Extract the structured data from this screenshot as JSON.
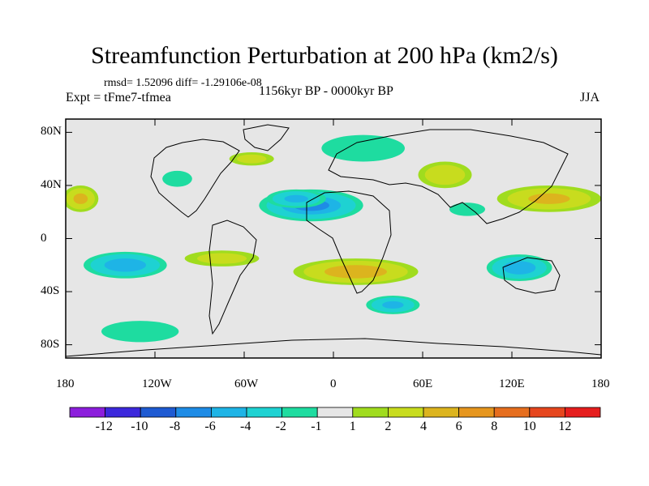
{
  "chart_data": {
    "type": "heatmap",
    "title": "Streamfunction Perturbation at 200 hPa (km2/s)",
    "stats_label": "rmsd= 1.52096 diff= -1.29106e-08",
    "experiment_label": "Expt = tFme7-tfmea",
    "period_label": "1156kyr BP - 0000kyr BP",
    "season_label": "JJA",
    "xlim": [
      -180,
      180
    ],
    "ylim": [
      -90,
      90
    ],
    "x_ticks": [
      {
        "value": -180,
        "label": "180"
      },
      {
        "value": -120,
        "label": "120W"
      },
      {
        "value": -60,
        "label": "60W"
      },
      {
        "value": 0,
        "label": "0"
      },
      {
        "value": 60,
        "label": "60E"
      },
      {
        "value": 120,
        "label": "120E"
      },
      {
        "value": 180,
        "label": "180"
      }
    ],
    "y_ticks": [
      {
        "value": 80,
        "label": "80N"
      },
      {
        "value": 40,
        "label": "40N"
      },
      {
        "value": 0,
        "label": "0"
      },
      {
        "value": -40,
        "label": "40S"
      },
      {
        "value": -80,
        "label": "80S"
      }
    ],
    "colorbar": {
      "colors": [
        "#8c1edc",
        "#3c28dc",
        "#1e5ad2",
        "#1e8ce6",
        "#1eb4e6",
        "#1ed2d2",
        "#1edca0",
        "#e6e6e6",
        "#a0dc1e",
        "#c8dc1e",
        "#dcb41e",
        "#e6961e",
        "#e66e1e",
        "#e6461e",
        "#e61e1e"
      ],
      "labels": [
        "-12",
        "-10",
        "-8",
        "-6",
        "-4",
        "-2",
        "-1",
        "1",
        "2",
        "4",
        "6",
        "8",
        "10",
        "12"
      ]
    },
    "anomalies": [
      {
        "lon": -15,
        "lat": 25,
        "rx": 35,
        "ry": 12,
        "value": -6
      },
      {
        "lon": -25,
        "lat": 30,
        "rx": 20,
        "ry": 7,
        "value": -4
      },
      {
        "lon": -140,
        "lat": -20,
        "rx": 28,
        "ry": 10,
        "value": -5
      },
      {
        "lon": 125,
        "lat": -22,
        "rx": 22,
        "ry": 10,
        "value": -5
      },
      {
        "lon": 40,
        "lat": -50,
        "rx": 18,
        "ry": 7,
        "value": -4
      },
      {
        "lon": -105,
        "lat": 45,
        "rx": 10,
        "ry": 6,
        "value": -1
      },
      {
        "lon": 20,
        "lat": 68,
        "rx": 28,
        "ry": 10,
        "value": -1
      },
      {
        "lon": 90,
        "lat": 22,
        "rx": 12,
        "ry": 5,
        "value": -1
      },
      {
        "lon": -130,
        "lat": -70,
        "rx": 26,
        "ry": 8,
        "value": -1
      },
      {
        "lon": 15,
        "lat": -25,
        "rx": 42,
        "ry": 10,
        "value": 5
      },
      {
        "lon": 75,
        "lat": 48,
        "rx": 18,
        "ry": 10,
        "value": 3
      },
      {
        "lon": 145,
        "lat": 30,
        "rx": 35,
        "ry": 10,
        "value": 4
      },
      {
        "lon": -170,
        "lat": 30,
        "rx": 12,
        "ry": 10,
        "value": 4
      },
      {
        "lon": -55,
        "lat": 60,
        "rx": 15,
        "ry": 5,
        "value": 2
      },
      {
        "lon": -75,
        "lat": -15,
        "rx": 25,
        "ry": 6,
        "value": 2
      }
    ]
  }
}
